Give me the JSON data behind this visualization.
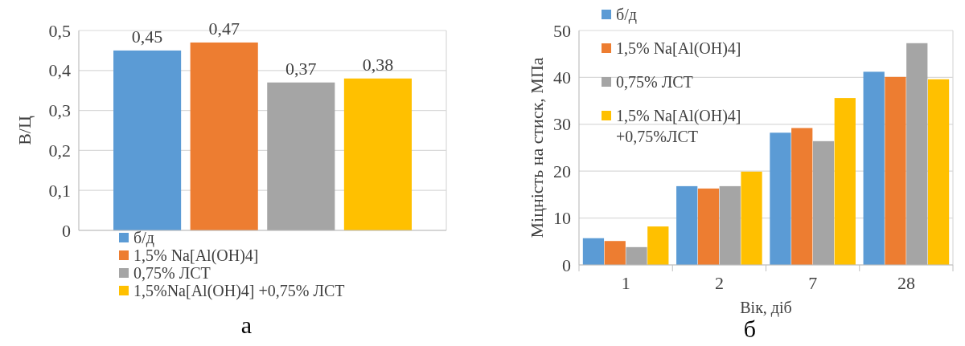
{
  "chart_data": [
    {
      "type": "bar",
      "ylabel": "В/Ц",
      "categories": [
        null
      ],
      "series": [
        {
          "name": "б/д",
          "color": "#5b9bd5",
          "values": [
            0.45
          ]
        },
        {
          "name": "1,5% Na[Al(OH)4]",
          "color": "#ed7d31",
          "values": [
            0.47
          ]
        },
        {
          "name": "0,75% ЛСТ",
          "color": "#a5a5a5",
          "values": [
            0.37
          ]
        },
        {
          "name": "1,5%Na[Al(OH)4] +0,75% ЛСТ",
          "color": "#ffc000",
          "values": [
            0.38
          ]
        }
      ],
      "ylim": [
        0,
        0.5
      ],
      "yticks": [
        0,
        {
          "value": 0.1,
          "label": "0,1"
        },
        {
          "value": 0.2,
          "label": "0,2"
        },
        {
          "value": 0.3,
          "label": "0,3"
        },
        {
          "value": 0.4,
          "label": "0,4"
        },
        {
          "value": 0.5,
          "label": "0,5"
        }
      ],
      "grid": "y",
      "legend": "bottom",
      "value_labels": [
        "0,45",
        "0,47",
        "0,37",
        "0,38"
      ],
      "annotations": [
        "а"
      ]
    },
    {
      "type": "bar",
      "ylabel": "Міцність на стиск, МПа",
      "xlabel": "Вік, діб",
      "categories": [
        "1",
        "2",
        "7",
        "28"
      ],
      "series": [
        {
          "name": "б/д",
          "color": "#5b9bd5",
          "values": [
            5.7,
            16.8,
            28.2,
            41.2
          ]
        },
        {
          "name": "1,5% Na[Al(OH)4]",
          "color": "#ed7d31",
          "values": [
            5.1,
            16.3,
            29.2,
            40.1
          ]
        },
        {
          "name": "0,75% ЛСТ",
          "color": "#a5a5a5",
          "values": [
            3.8,
            16.8,
            26.4,
            47.3
          ]
        },
        {
          "name": "1,5% Na[Al(OH)4] +0,75%ЛСТ",
          "color": "#ffc000",
          "values": [
            8.2,
            19.9,
            35.6,
            39.6
          ]
        }
      ],
      "ylim": [
        0,
        50
      ],
      "yticks": [
        0,
        10,
        20,
        30,
        40,
        50
      ],
      "grid": "y",
      "legend": "top left",
      "annotations": [
        "б"
      ]
    }
  ]
}
